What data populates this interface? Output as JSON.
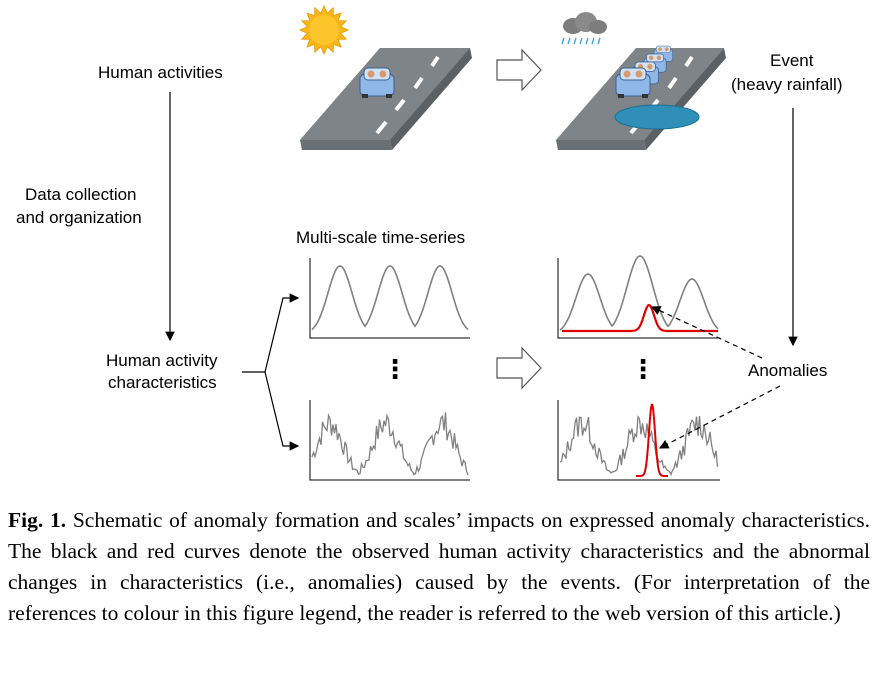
{
  "labels": {
    "human_activities": "Human activities",
    "data_collection_1": "Data collection",
    "data_collection_2": "and organization",
    "human_activity_char_1": "Human activity",
    "human_activity_char_2": "characteristics",
    "multi_scale": "Multi-scale time-series",
    "event_1": "Event",
    "event_2": "(heavy rainfall)",
    "anomalies": "Anomalies",
    "ellipsis": "⋮"
  },
  "caption": {
    "fig_label": "Fig. 1.",
    "text": " Schematic of anomaly formation and scales’ impacts on expressed anomaly characteristics. The black and red curves denote the observed human activity characteristics and the abnormal changes in characteristics (i.e., anomalies) caused by the events. (For interpretation of the references to colour in this figure legend, the reader is referred to the web version of this article.)"
  },
  "colors": {
    "road": "#7f8489",
    "road_edge": "#5b6064",
    "curve": "#808080",
    "anomaly": "#e00000",
    "sun": "#f7b718",
    "car": "#8fb8e8",
    "puddle": "#2f8fb8",
    "cloud": "#7d7d7d",
    "rain": "#3aa0d8"
  },
  "icons": [
    "sun-icon",
    "rain-cloud-icon",
    "car-icon",
    "puddle-icon"
  ]
}
